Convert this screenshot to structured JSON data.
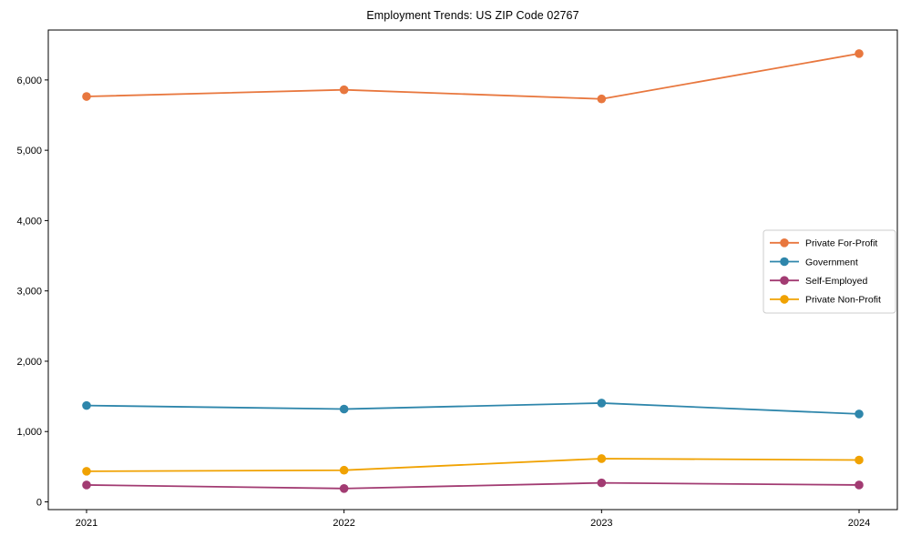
{
  "title": "Employment Trends: US ZIP Code 02767",
  "chart_data": {
    "type": "line",
    "title": "Employment Trends: US ZIP Code 02767",
    "xlabel": "",
    "ylabel": "",
    "x": [
      2021,
      2022,
      2023,
      2024
    ],
    "x_tick_labels": [
      "2021",
      "2022",
      "2023",
      "2024"
    ],
    "y_ticks": [
      0,
      1000,
      2000,
      3000,
      4000,
      5000,
      6000
    ],
    "y_tick_labels": [
      "0",
      "1,000",
      "2,000",
      "3,000",
      "4,000",
      "5,000",
      "6,000"
    ],
    "ylim": [
      -110,
      6710
    ],
    "grid": false,
    "legend_position": "center right",
    "series": [
      {
        "name": "Private For-Profit",
        "color": "#E8773E",
        "values": [
          5765,
          5860,
          5730,
          6375
        ]
      },
      {
        "name": "Government",
        "color": "#2E86AB",
        "values": [
          1370,
          1320,
          1405,
          1250
        ]
      },
      {
        "name": "Self-Employed",
        "color": "#A23B72",
        "values": [
          240,
          190,
          270,
          240
        ]
      },
      {
        "name": "Private Non-Profit",
        "color": "#F0A202",
        "values": [
          435,
          450,
          615,
          595
        ]
      }
    ],
    "legend": {
      "entries": [
        "Private For-Profit",
        "Government",
        "Self-Employed",
        "Private Non-Profit"
      ],
      "border_color": "#cccccc",
      "background": "#ffffff"
    },
    "axis_color": "#000000"
  }
}
